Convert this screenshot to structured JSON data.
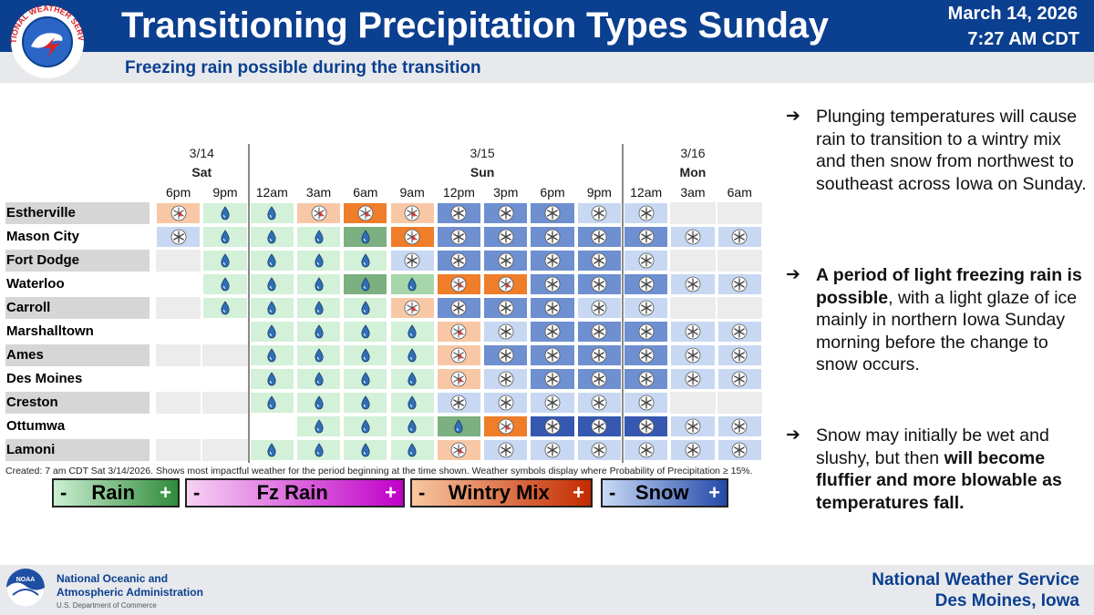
{
  "header": {
    "title": "Transitioning Precipitation Types Sunday",
    "subtitle": "Freezing rain possible during the transition",
    "date": "March 14, 2026",
    "time": "7:27 AM CDT",
    "logo_text": "NATIONAL WEATHER SERVICE"
  },
  "table": {
    "days": [
      {
        "date": "3/14",
        "day": "Sat"
      },
      {
        "date": "3/15",
        "day": "Sun"
      },
      {
        "date": "3/16",
        "day": "Mon"
      }
    ],
    "times": [
      "6pm",
      "9pm",
      "12am",
      "3am",
      "6am",
      "9am",
      "12pm",
      "3pm",
      "6pm",
      "9pm",
      "12am",
      "3am",
      "6am"
    ],
    "colors": {
      "rain_light": "#d3f0d8",
      "rain_mod": "#a6d6a9",
      "rain_heavy": "#7cb080",
      "fzrain_light": "#f8c8a6",
      "wmix_light": "#f5b37f",
      "wmix_heavy": "#ef7d2a",
      "snow_light": "#c8d8f2",
      "snow_mod": "#6e8fd0",
      "snow_heavy": "#3658b0",
      "none": "#ffffff"
    },
    "rows": [
      {
        "name": "Estherville",
        "cells": [
          "wx",
          "rl",
          "rl",
          "wx",
          "wh",
          "wx",
          "sm",
          "sm",
          "sm",
          "sl",
          "sl",
          "",
          ""
        ]
      },
      {
        "name": "Mason City",
        "cells": [
          "sl",
          "rl",
          "rl",
          "rl",
          "rh",
          "wh",
          "sm",
          "sm",
          "sm",
          "sm",
          "sm",
          "sl",
          "sl"
        ]
      },
      {
        "name": "Fort Dodge",
        "cells": [
          "",
          "rl",
          "rl",
          "rl",
          "rl",
          "sl",
          "sm",
          "sm",
          "sm",
          "sm",
          "sl",
          "",
          ""
        ]
      },
      {
        "name": "Waterloo",
        "cells": [
          "",
          "rl",
          "rl",
          "rl",
          "rh",
          "rm",
          "wh",
          "wh",
          "sm",
          "sm",
          "sm",
          "sl",
          "sl"
        ]
      },
      {
        "name": "Carroll",
        "cells": [
          "",
          "rl",
          "rl",
          "rl",
          "rl",
          "wx",
          "sm",
          "sm",
          "sm",
          "sl",
          "sl",
          "",
          ""
        ]
      },
      {
        "name": "Marshalltown",
        "cells": [
          "",
          "",
          "rl",
          "rl",
          "rl",
          "rl",
          "wx",
          "sl",
          "sm",
          "sm",
          "sm",
          "sl",
          "sl"
        ]
      },
      {
        "name": "Ames",
        "cells": [
          "",
          "",
          "rl",
          "rl",
          "rl",
          "rl",
          "wx",
          "sm",
          "sm",
          "sm",
          "sm",
          "sl",
          "sl"
        ]
      },
      {
        "name": "Des Moines",
        "cells": [
          "",
          "",
          "rl",
          "rl",
          "rl",
          "rl",
          "wx",
          "sl",
          "sm",
          "sm",
          "sm",
          "sl",
          "sl"
        ]
      },
      {
        "name": "Creston",
        "cells": [
          "",
          "",
          "rl",
          "rl",
          "rl",
          "rl",
          "sl",
          "sl",
          "sl",
          "sl",
          "sl",
          "",
          ""
        ]
      },
      {
        "name": "Ottumwa",
        "cells": [
          "",
          "",
          "",
          "rl",
          "rl",
          "rl",
          "rh",
          "wh",
          "sh",
          "sh",
          "sh",
          "sl",
          "sl"
        ]
      },
      {
        "name": "Lamoni",
        "cells": [
          "",
          "",
          "rl",
          "rl",
          "rl",
          "rl",
          "wx",
          "sl",
          "sl",
          "sl",
          "sl",
          "sl",
          "sl"
        ]
      }
    ]
  },
  "created_note": "Created: 7 am CDT Sat 3/14/2026. Shows most impactful weather for the period beginning at the time shown. Weather symbols display where Probability of Precipitation ≥ 15%.",
  "legend": [
    {
      "minus": "-",
      "label": "Rain",
      "plus": "+",
      "from": "#ccefd2",
      "to": "#2f8b3a"
    },
    {
      "minus": "-",
      "label": "Fz Rain",
      "plus": "+",
      "from": "#f7d2f4",
      "to": "#c000c8"
    },
    {
      "minus": "-",
      "label": "Wintry Mix",
      "plus": "+",
      "from": "#f8c7a0",
      "to": "#c42a00"
    },
    {
      "minus": "-",
      "label": "Snow",
      "plus": "+",
      "from": "#c8daf7",
      "to": "#2348a8"
    }
  ],
  "bullets": [
    {
      "arrow": "➔",
      "pre": "Plunging temperatures will cause rain to transition to a wintry mix and then snow from northwest to southeast across Iowa on Sunday.",
      "bold": "",
      "post": ""
    },
    {
      "arrow": "➔",
      "pre": "",
      "bold": "A period of light freezing rain is possible",
      "post": ", with a light glaze of ice mainly in northern Iowa Sunday morning before the change to snow occurs."
    },
    {
      "arrow": "➔",
      "pre": "Snow may initially be wet and slushy, but then ",
      "bold": "will become fluffier and more blowable as temperatures fall.",
      "post": ""
    }
  ],
  "footer": {
    "noaa_line1": "National Oceanic and",
    "noaa_line2": "Atmospheric Administration",
    "noaa_dept": "U.S. Department of Commerce",
    "noaa_logo_text": "NOAA",
    "office_line1": "National Weather Service",
    "office_line2": "Des Moines, Iowa"
  }
}
